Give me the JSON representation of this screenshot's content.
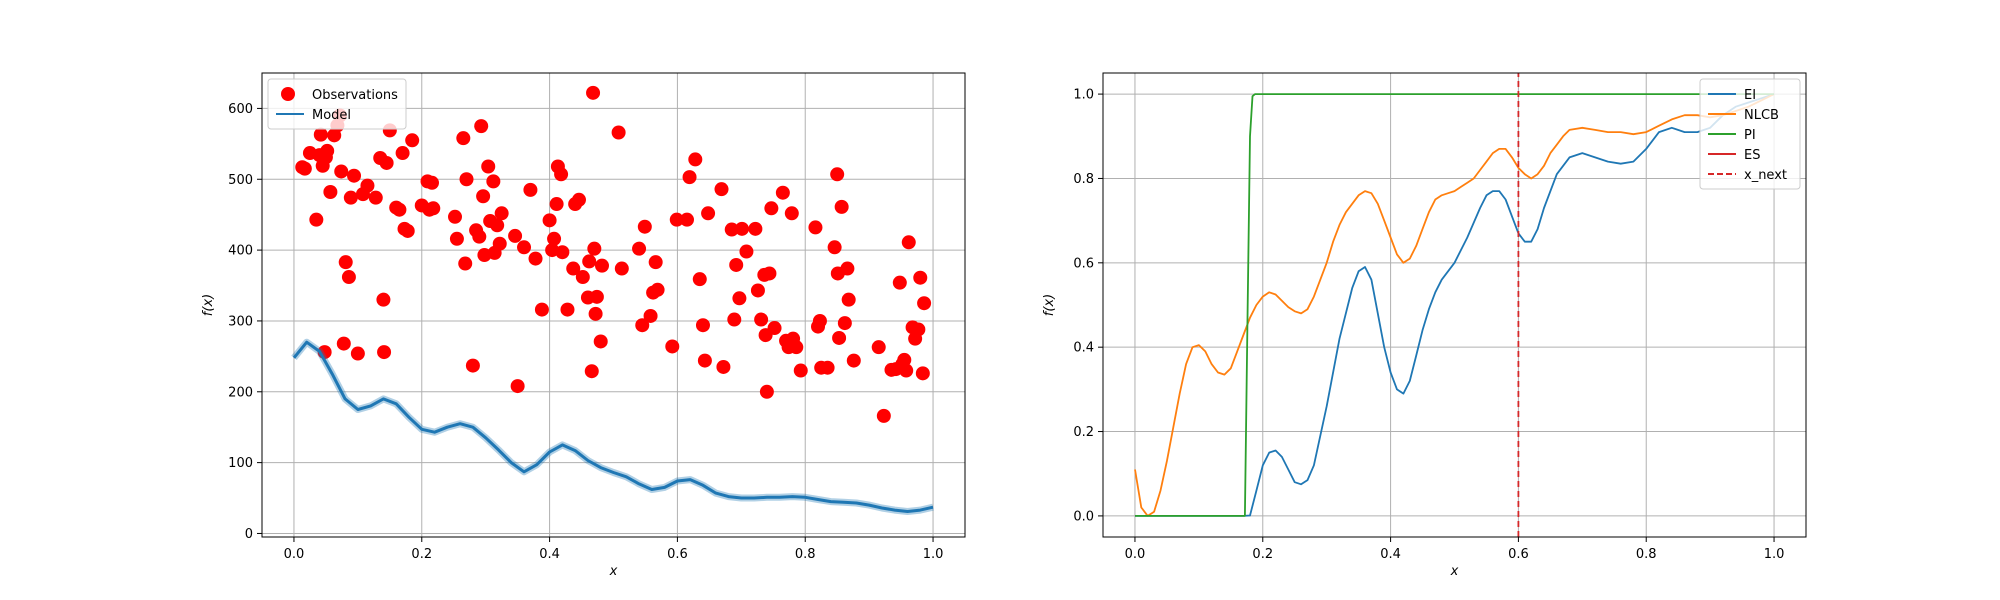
{
  "chart_data": [
    {
      "type": "scatter",
      "xlabel": "x",
      "ylabel": "f(x)",
      "xlim": [
        -0.05,
        1.05
      ],
      "ylim": [
        -5,
        650
      ],
      "xticks": [
        "0.0",
        "0.2",
        "0.4",
        "0.6",
        "0.8",
        "1.0"
      ],
      "yticks": [
        "0",
        "100",
        "200",
        "300",
        "400",
        "500",
        "600"
      ],
      "grid": true,
      "legend_position": "top-left",
      "series": [
        {
          "name": "Observations",
          "color": "#ff0000",
          "marker": "circle",
          "points": [
            [
              0.013,
              517
            ],
            [
              0.017,
              515
            ],
            [
              0.025,
              537
            ],
            [
              0.035,
              443
            ],
            [
              0.04,
              534
            ],
            [
              0.042,
              563
            ],
            [
              0.045,
              519
            ],
            [
              0.048,
              256
            ],
            [
              0.05,
              531
            ],
            [
              0.052,
              540
            ],
            [
              0.057,
              482
            ],
            [
              0.063,
              562
            ],
            [
              0.068,
              576
            ],
            [
              0.072,
              590
            ],
            [
              0.074,
              511
            ],
            [
              0.078,
              268
            ],
            [
              0.081,
              383
            ],
            [
              0.086,
              362
            ],
            [
              0.089,
              474
            ],
            [
              0.094,
              505
            ],
            [
              0.1,
              254
            ],
            [
              0.108,
              479
            ],
            [
              0.115,
              491
            ],
            [
              0.128,
              474
            ],
            [
              0.135,
              530
            ],
            [
              0.14,
              330
            ],
            [
              0.141,
              256
            ],
            [
              0.145,
              523
            ],
            [
              0.15,
              569
            ],
            [
              0.16,
              460
            ],
            [
              0.165,
              457
            ],
            [
              0.17,
              537
            ],
            [
              0.173,
              430
            ],
            [
              0.178,
              427
            ],
            [
              0.185,
              555
            ],
            [
              0.2,
              463
            ],
            [
              0.209,
              497
            ],
            [
              0.212,
              457
            ],
            [
              0.216,
              495
            ],
            [
              0.218,
              459
            ],
            [
              0.252,
              447
            ],
            [
              0.255,
              416
            ],
            [
              0.265,
              558
            ],
            [
              0.268,
              381
            ],
            [
              0.27,
              500
            ],
            [
              0.28,
              237
            ],
            [
              0.285,
              428
            ],
            [
              0.29,
              419
            ],
            [
              0.293,
              575
            ],
            [
              0.296,
              476
            ],
            [
              0.298,
              393
            ],
            [
              0.304,
              518
            ],
            [
              0.307,
              441
            ],
            [
              0.312,
              497
            ],
            [
              0.314,
              396
            ],
            [
              0.318,
              435
            ],
            [
              0.322,
              409
            ],
            [
              0.325,
              452
            ],
            [
              0.346,
              420
            ],
            [
              0.35,
              208
            ],
            [
              0.36,
              404
            ],
            [
              0.37,
              485
            ],
            [
              0.378,
              388
            ],
            [
              0.388,
              316
            ],
            [
              0.4,
              442
            ],
            [
              0.404,
              400
            ],
            [
              0.407,
              416
            ],
            [
              0.411,
              465
            ],
            [
              0.413,
              518
            ],
            [
              0.418,
              507
            ],
            [
              0.42,
              397
            ],
            [
              0.428,
              316
            ],
            [
              0.437,
              374
            ],
            [
              0.44,
              465
            ],
            [
              0.446,
              471
            ],
            [
              0.452,
              362
            ],
            [
              0.46,
              333
            ],
            [
              0.462,
              384
            ],
            [
              0.466,
              229
            ],
            [
              0.468,
              622
            ],
            [
              0.47,
              402
            ],
            [
              0.472,
              310
            ],
            [
              0.474,
              334
            ],
            [
              0.48,
              271
            ],
            [
              0.482,
              378
            ],
            [
              0.508,
              566
            ],
            [
              0.513,
              374
            ],
            [
              0.54,
              402
            ],
            [
              0.545,
              294
            ],
            [
              0.549,
              433
            ],
            [
              0.558,
              307
            ],
            [
              0.562,
              340
            ],
            [
              0.566,
              383
            ],
            [
              0.569,
              344
            ],
            [
              0.592,
              264
            ],
            [
              0.599,
              443
            ],
            [
              0.615,
              443
            ],
            [
              0.619,
              503
            ],
            [
              0.628,
              528
            ],
            [
              0.635,
              359
            ],
            [
              0.64,
              294
            ],
            [
              0.643,
              244
            ],
            [
              0.648,
              452
            ],
            [
              0.669,
              486
            ],
            [
              0.672,
              235
            ],
            [
              0.685,
              429
            ],
            [
              0.689,
              302
            ],
            [
              0.692,
              379
            ],
            [
              0.697,
              332
            ],
            [
              0.701,
              430
            ],
            [
              0.708,
              398
            ],
            [
              0.722,
              430
            ],
            [
              0.726,
              343
            ],
            [
              0.731,
              302
            ],
            [
              0.736,
              365
            ],
            [
              0.738,
              280
            ],
            [
              0.74,
              200
            ],
            [
              0.744,
              367
            ],
            [
              0.747,
              459
            ],
            [
              0.752,
              290
            ],
            [
              0.765,
              481
            ],
            [
              0.77,
              272
            ],
            [
              0.774,
              263
            ],
            [
              0.779,
              452
            ],
            [
              0.781,
              275
            ],
            [
              0.786,
              263
            ],
            [
              0.793,
              230
            ],
            [
              0.816,
              432
            ],
            [
              0.82,
              292
            ],
            [
              0.823,
              300
            ],
            [
              0.825,
              234
            ],
            [
              0.835,
              234
            ],
            [
              0.846,
              404
            ],
            [
              0.851,
              367
            ],
            [
              0.853,
              276
            ],
            [
              0.857,
              461
            ],
            [
              0.862,
              297
            ],
            [
              0.866,
              374
            ],
            [
              0.868,
              330
            ],
            [
              0.876,
              244
            ],
            [
              0.915,
              263
            ],
            [
              0.923,
              166
            ],
            [
              0.935,
              231
            ],
            [
              0.942,
              232
            ],
            [
              0.948,
              354
            ],
            [
              0.952,
              239
            ],
            [
              0.955,
              245
            ],
            [
              0.958,
              230
            ],
            [
              0.962,
              411
            ],
            [
              0.968,
              291
            ],
            [
              0.972,
              275
            ],
            [
              0.977,
              288
            ],
            [
              0.98,
              361
            ],
            [
              0.984,
              226
            ],
            [
              0.986,
              325
            ],
            [
              0.85,
              507
            ]
          ]
        },
        {
          "name": "Model",
          "color": "#1f77b4",
          "marker": "line",
          "x": [
            0.0,
            0.02,
            0.04,
            0.06,
            0.08,
            0.1,
            0.12,
            0.14,
            0.16,
            0.18,
            0.2,
            0.22,
            0.24,
            0.26,
            0.28,
            0.3,
            0.32,
            0.34,
            0.36,
            0.38,
            0.4,
            0.42,
            0.44,
            0.46,
            0.48,
            0.5,
            0.52,
            0.54,
            0.56,
            0.58,
            0.6,
            0.62,
            0.64,
            0.66,
            0.68,
            0.7,
            0.72,
            0.74,
            0.76,
            0.78,
            0.8,
            0.82,
            0.84,
            0.86,
            0.88,
            0.9,
            0.92,
            0.94,
            0.96,
            0.98,
            1.0
          ],
          "values": [
            248,
            270,
            257,
            225,
            190,
            175,
            180,
            190,
            183,
            164,
            147,
            143,
            150,
            155,
            150,
            135,
            118,
            100,
            87,
            97,
            115,
            125,
            117,
            103,
            93,
            86,
            80,
            70,
            62,
            65,
            74,
            76,
            68,
            57,
            52,
            50,
            50,
            51,
            51,
            52,
            51,
            48,
            45,
            44,
            43,
            40,
            36,
            33,
            31,
            33,
            37
          ]
        }
      ]
    },
    {
      "type": "line",
      "xlabel": "x",
      "ylabel": "f(x)",
      "xlim": [
        -0.05,
        1.05
      ],
      "ylim": [
        -0.05,
        1.05
      ],
      "xticks": [
        "0.0",
        "0.2",
        "0.4",
        "0.6",
        "0.8",
        "1.0"
      ],
      "yticks": [
        "0.0",
        "0.2",
        "0.4",
        "0.6",
        "0.8",
        "1.0"
      ],
      "grid": true,
      "legend_position": "top-right",
      "x_next": 0.6,
      "series": [
        {
          "name": "EI",
          "color": "#1f77b4",
          "x": [
            0.0,
            0.17,
            0.18,
            0.19,
            0.2,
            0.21,
            0.22,
            0.23,
            0.24,
            0.25,
            0.26,
            0.27,
            0.28,
            0.3,
            0.32,
            0.34,
            0.35,
            0.36,
            0.37,
            0.38,
            0.39,
            0.4,
            0.41,
            0.42,
            0.43,
            0.44,
            0.45,
            0.46,
            0.47,
            0.48,
            0.5,
            0.52,
            0.54,
            0.55,
            0.56,
            0.57,
            0.58,
            0.59,
            0.6,
            0.61,
            0.62,
            0.63,
            0.64,
            0.66,
            0.68,
            0.7,
            0.72,
            0.74,
            0.76,
            0.78,
            0.8,
            0.82,
            0.84,
            0.86,
            0.88,
            0.9,
            0.92,
            0.94,
            0.96,
            0.98,
            1.0
          ],
          "values": [
            0.0,
            0.0,
            0.001,
            0.06,
            0.12,
            0.15,
            0.155,
            0.14,
            0.11,
            0.08,
            0.075,
            0.085,
            0.12,
            0.26,
            0.42,
            0.54,
            0.58,
            0.59,
            0.56,
            0.48,
            0.4,
            0.34,
            0.3,
            0.29,
            0.32,
            0.38,
            0.44,
            0.49,
            0.53,
            0.56,
            0.6,
            0.66,
            0.73,
            0.76,
            0.77,
            0.77,
            0.75,
            0.71,
            0.67,
            0.65,
            0.65,
            0.68,
            0.73,
            0.81,
            0.85,
            0.86,
            0.85,
            0.84,
            0.835,
            0.84,
            0.87,
            0.91,
            0.92,
            0.91,
            0.91,
            0.92,
            0.95,
            0.97,
            0.98,
            0.99,
            1.0
          ]
        },
        {
          "name": "NLCB",
          "color": "#ff7f0e",
          "x": [
            0.0,
            0.01,
            0.02,
            0.03,
            0.04,
            0.05,
            0.06,
            0.07,
            0.08,
            0.09,
            0.1,
            0.11,
            0.12,
            0.13,
            0.14,
            0.15,
            0.16,
            0.17,
            0.18,
            0.19,
            0.2,
            0.21,
            0.22,
            0.23,
            0.24,
            0.25,
            0.26,
            0.27,
            0.28,
            0.29,
            0.3,
            0.31,
            0.32,
            0.33,
            0.34,
            0.35,
            0.36,
            0.37,
            0.38,
            0.39,
            0.4,
            0.41,
            0.42,
            0.43,
            0.44,
            0.45,
            0.46,
            0.47,
            0.48,
            0.49,
            0.5,
            0.51,
            0.52,
            0.53,
            0.54,
            0.55,
            0.56,
            0.57,
            0.58,
            0.59,
            0.6,
            0.61,
            0.62,
            0.63,
            0.64,
            0.65,
            0.66,
            0.67,
            0.68,
            0.7,
            0.72,
            0.74,
            0.76,
            0.78,
            0.8,
            0.82,
            0.84,
            0.86,
            0.88,
            0.9,
            0.92,
            0.94,
            0.96,
            0.98,
            1.0
          ],
          "values": [
            0.11,
            0.02,
            0.0,
            0.01,
            0.06,
            0.13,
            0.21,
            0.29,
            0.36,
            0.4,
            0.405,
            0.39,
            0.36,
            0.34,
            0.335,
            0.35,
            0.39,
            0.43,
            0.47,
            0.5,
            0.52,
            0.53,
            0.525,
            0.51,
            0.495,
            0.485,
            0.48,
            0.49,
            0.52,
            0.56,
            0.6,
            0.65,
            0.69,
            0.72,
            0.74,
            0.76,
            0.77,
            0.765,
            0.74,
            0.7,
            0.66,
            0.62,
            0.6,
            0.61,
            0.64,
            0.68,
            0.72,
            0.75,
            0.76,
            0.765,
            0.77,
            0.78,
            0.79,
            0.8,
            0.82,
            0.84,
            0.86,
            0.87,
            0.87,
            0.85,
            0.825,
            0.81,
            0.8,
            0.81,
            0.83,
            0.86,
            0.88,
            0.9,
            0.915,
            0.92,
            0.915,
            0.91,
            0.91,
            0.905,
            0.91,
            0.925,
            0.94,
            0.95,
            0.95,
            0.945,
            0.95,
            0.96,
            0.97,
            0.985,
            1.0
          ]
        },
        {
          "name": "PI",
          "color": "#2ca02c",
          "x": [
            0.0,
            0.172,
            0.176,
            0.18,
            0.184,
            0.188,
            1.0
          ],
          "values": [
            0.0,
            0.0,
            0.45,
            0.9,
            0.995,
            1.0,
            1.0
          ]
        },
        {
          "name": "ES",
          "color": "#d62728",
          "x": [],
          "values": []
        },
        {
          "name": "x_next",
          "color": "#d62728",
          "style": "dashed",
          "x": [
            0.6,
            0.6
          ],
          "values": [
            -0.05,
            1.05
          ]
        }
      ]
    }
  ]
}
